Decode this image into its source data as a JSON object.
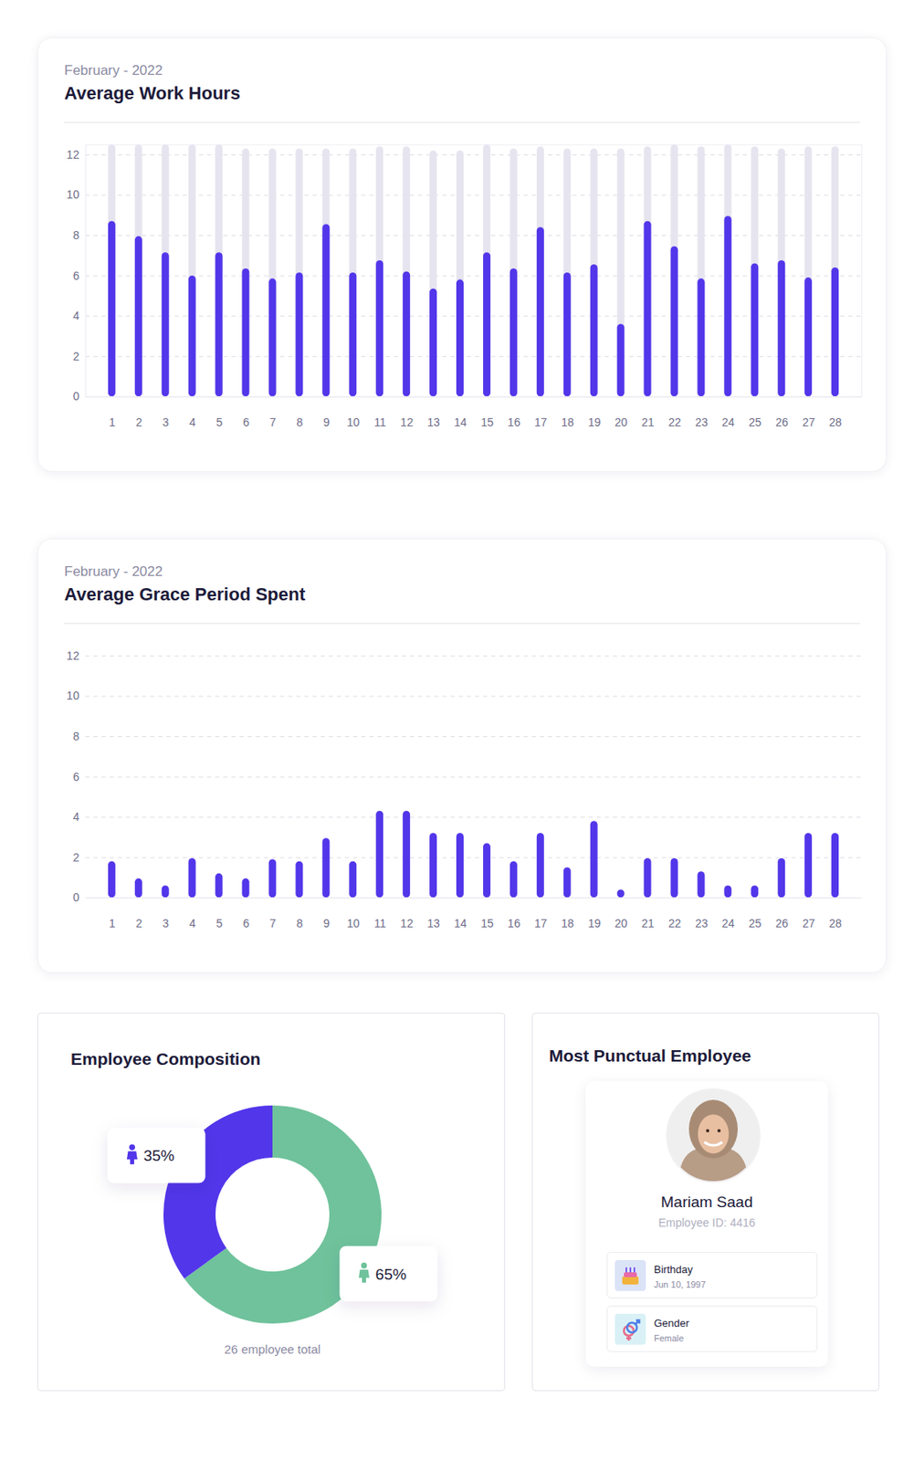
{
  "chart_data": [
    {
      "type": "bar",
      "subtitle": "February - 2022",
      "title": "Average Work Hours",
      "categories": [
        "1",
        "2",
        "3",
        "4",
        "5",
        "6",
        "7",
        "8",
        "9",
        "10",
        "11",
        "12",
        "13",
        "14",
        "15",
        "16",
        "17",
        "18",
        "19",
        "20",
        "21",
        "22",
        "23",
        "24",
        "25",
        "26",
        "27",
        "28"
      ],
      "series": [
        {
          "color": "#e6e5ef",
          "values": [
            12.5,
            12.5,
            12.5,
            12.5,
            12.5,
            12.3,
            12.3,
            12.3,
            12.3,
            12.3,
            12.4,
            12.4,
            12.2,
            12.2,
            12.5,
            12.3,
            12.4,
            12.3,
            12.3,
            12.3,
            12.4,
            12.5,
            12.4,
            12.5,
            12.4,
            12.3,
            12.4,
            12.4
          ]
        },
        {
          "color": "#5236ea",
          "values": [
            8.7,
            7.95,
            7.15,
            6.0,
            7.15,
            6.35,
            5.85,
            6.15,
            8.55,
            6.15,
            6.75,
            6.2,
            5.35,
            5.8,
            7.15,
            6.35,
            8.4,
            6.15,
            6.55,
            3.6,
            8.7,
            7.45,
            5.85,
            8.95,
            6.6,
            6.75,
            5.9,
            6.4
          ]
        }
      ],
      "stacked": false,
      "ylim": [
        0,
        12.5
      ],
      "yticks": [
        0,
        2,
        4,
        6,
        8,
        10,
        12
      ],
      "grid": true
    },
    {
      "type": "bar",
      "subtitle": "February - 2022",
      "title": "Average Grace Period Spent",
      "categories": [
        "1",
        "2",
        "3",
        "4",
        "5",
        "6",
        "7",
        "8",
        "9",
        "10",
        "11",
        "12",
        "13",
        "14",
        "15",
        "16",
        "17",
        "18",
        "19",
        "20",
        "21",
        "22",
        "23",
        "24",
        "25",
        "26",
        "27",
        "28"
      ],
      "values": [
        1.8,
        0.95,
        0.6,
        1.95,
        1.2,
        0.95,
        1.9,
        1.8,
        2.95,
        1.8,
        4.3,
        4.3,
        3.2,
        3.2,
        2.7,
        1.8,
        3.2,
        1.5,
        3.8,
        0.4,
        1.95,
        1.95,
        1.3,
        0.6,
        0.6,
        1.95,
        3.2,
        3.2
      ],
      "color": "#5236ea",
      "ylim": [
        0,
        12
      ],
      "yticks": [
        0,
        2,
        4,
        6,
        8,
        10,
        12
      ],
      "grid": true
    },
    {
      "type": "donut",
      "title": "Employee Composition",
      "values": [
        35,
        65
      ],
      "colors": [
        "#5236ea",
        "#6fc29b"
      ],
      "data_labels": true,
      "value_labels": [
        "35%",
        "65%"
      ],
      "caption": "26 employee total"
    }
  ],
  "employee_card": {
    "title": "Most Punctual Employee",
    "name": "Mariam Saad",
    "employee_id": "Employee ID: 4416",
    "fields": [
      {
        "label": "Birthday",
        "value": "Jun 10, 1997"
      },
      {
        "label": "Gender",
        "value": "Female"
      }
    ]
  }
}
